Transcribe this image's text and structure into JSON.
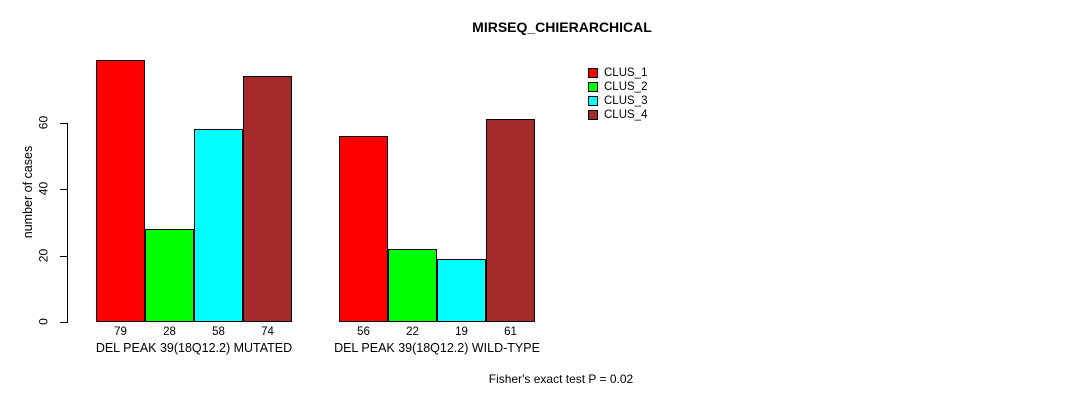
{
  "title": "MIRSEQ_CHIERARCHICAL",
  "y_axis_label": "number of cases",
  "footer_note": "Fisher's exact test P = 0.02",
  "colors": {
    "background": "#FFFFFF",
    "axis": "#000000",
    "bar_border": "#000000"
  },
  "chart_data": {
    "type": "bar",
    "title": "MIRSEQ_CHIERARCHICAL",
    "xlabel": "",
    "ylabel": "number of cases",
    "ylim": [
      0,
      79
    ],
    "yticks": [
      0,
      20,
      40,
      60
    ],
    "grid": false,
    "legend_position": "top-right",
    "bar_value_labels": true,
    "categories": [
      "DEL PEAK 39(18Q12.2) MUTATED",
      "DEL PEAK 39(18Q12.2) WILD-TYPE"
    ],
    "series": [
      {
        "name": "CLUS_1",
        "color": "#FF0000",
        "values": [
          79,
          56
        ]
      },
      {
        "name": "CLUS_2",
        "color": "#00FF00",
        "values": [
          28,
          22
        ]
      },
      {
        "name": "CLUS_3",
        "color": "#00FFFF",
        "values": [
          58,
          19
        ]
      },
      {
        "name": "CLUS_4",
        "color": "#A52A2A",
        "values": [
          74,
          61
        ]
      }
    ],
    "annotation": "Fisher's exact test P = 0.02"
  }
}
